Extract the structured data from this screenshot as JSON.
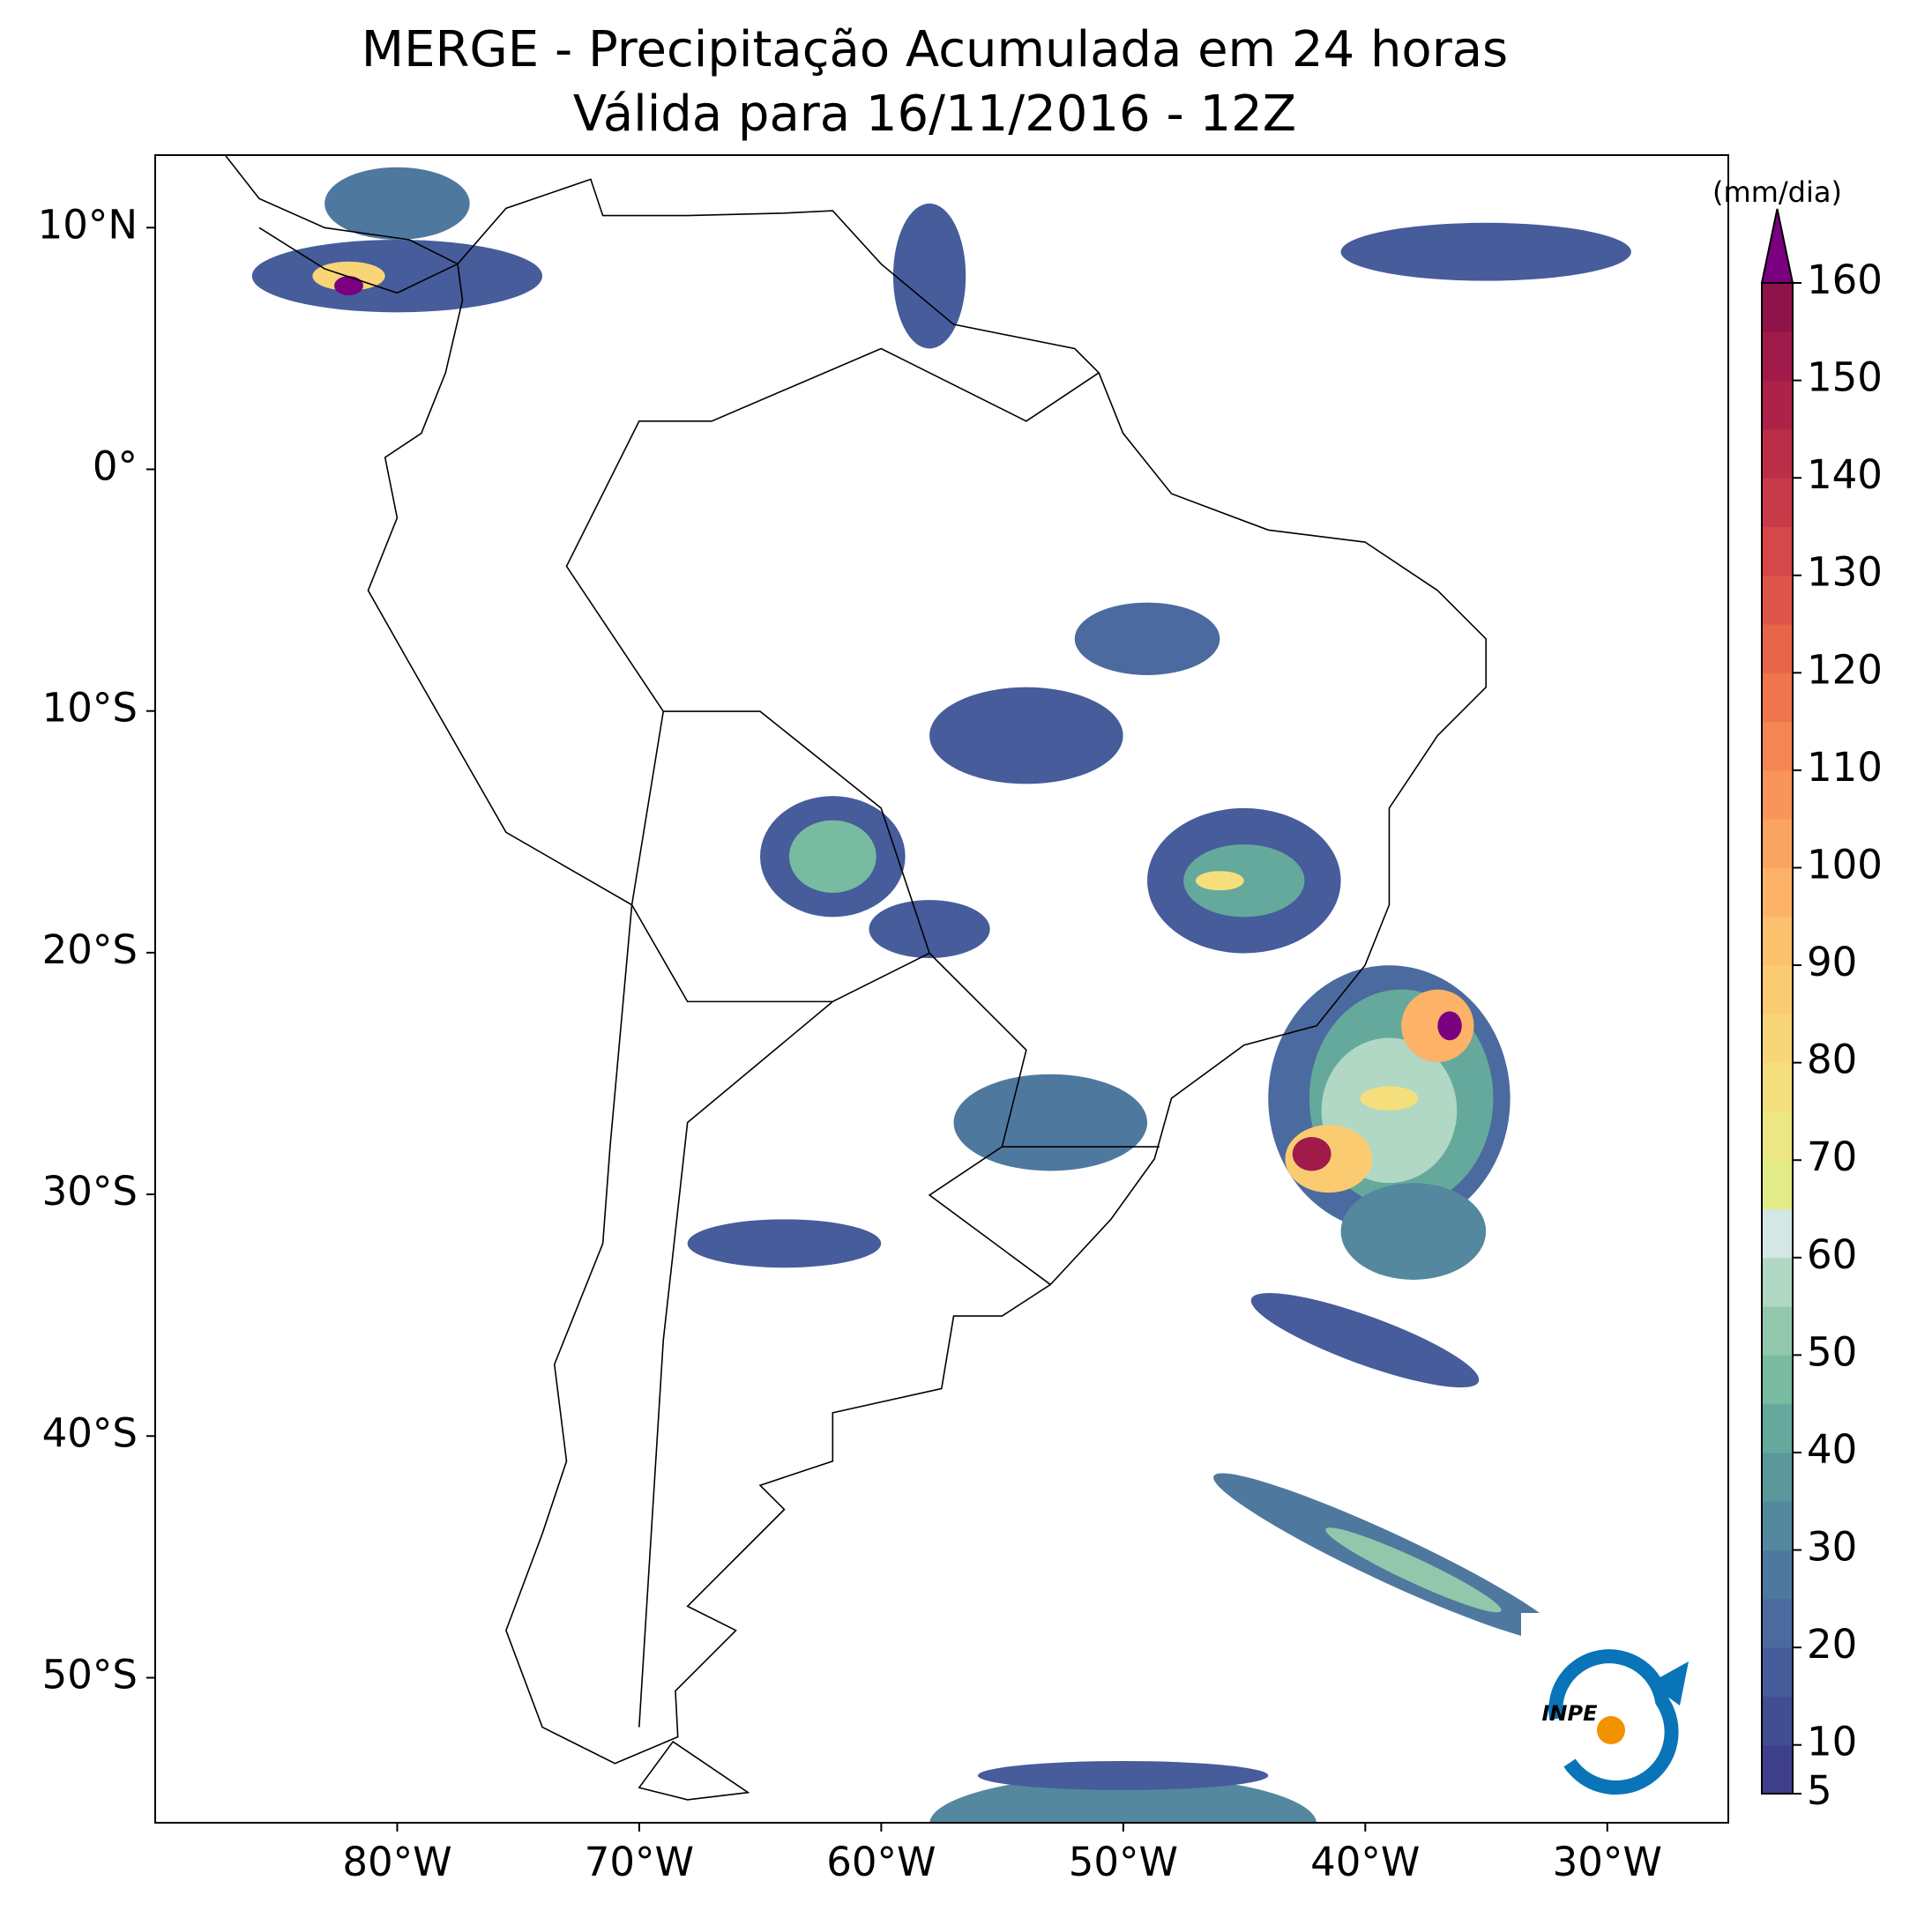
{
  "header": {
    "title": "MERGE - Precipitação Acumulada em 24 horas",
    "subtitle": "Válida para 16/11/2016 - 12Z"
  },
  "map": {
    "xlim": [
      -90,
      -25
    ],
    "ylim": [
      -56,
      13
    ],
    "xticks": [
      {
        "value": -80,
        "label": "80°W"
      },
      {
        "value": -70,
        "label": "70°W"
      },
      {
        "value": -60,
        "label": "60°W"
      },
      {
        "value": -50,
        "label": "50°W"
      },
      {
        "value": -40,
        "label": "40°W"
      },
      {
        "value": -30,
        "label": "30°W"
      }
    ],
    "yticks": [
      {
        "value": 10,
        "label": "10°N"
      },
      {
        "value": 0,
        "label": "0°"
      },
      {
        "value": -10,
        "label": "10°S"
      },
      {
        "value": -20,
        "label": "20°S"
      },
      {
        "value": -30,
        "label": "30°S"
      },
      {
        "value": -40,
        "label": "40°S"
      },
      {
        "value": -50,
        "label": "50°S"
      }
    ]
  },
  "colorbar": {
    "label": "(mm/dia)",
    "lim": [
      5,
      160
    ],
    "ticks": [
      5,
      10,
      20,
      30,
      40,
      50,
      60,
      70,
      80,
      90,
      100,
      110,
      120,
      130,
      140,
      150,
      160
    ],
    "colors": [
      "#3e3f8c",
      "#424e94",
      "#465c9b",
      "#4b6a9f",
      "#4f789f",
      "#53889e",
      "#5a989c",
      "#64a99c",
      "#78bba0",
      "#91c8ab",
      "#b0d8c4",
      "#d3e7e5",
      "#e1ec87",
      "#ece783",
      "#f5df7c",
      "#f8d576",
      "#fbcb72",
      "#fdc06d",
      "#fdb268",
      "#fba462",
      "#f9955a",
      "#f58553",
      "#f0744e",
      "#e9654a",
      "#e05549",
      "#d54748",
      "#c93a48",
      "#bc2e48",
      "#ae2249",
      "#a01a4a",
      "#8f1248"
    ],
    "extend_color": "#7b0080"
  },
  "logo": {
    "text": "INPE"
  }
}
